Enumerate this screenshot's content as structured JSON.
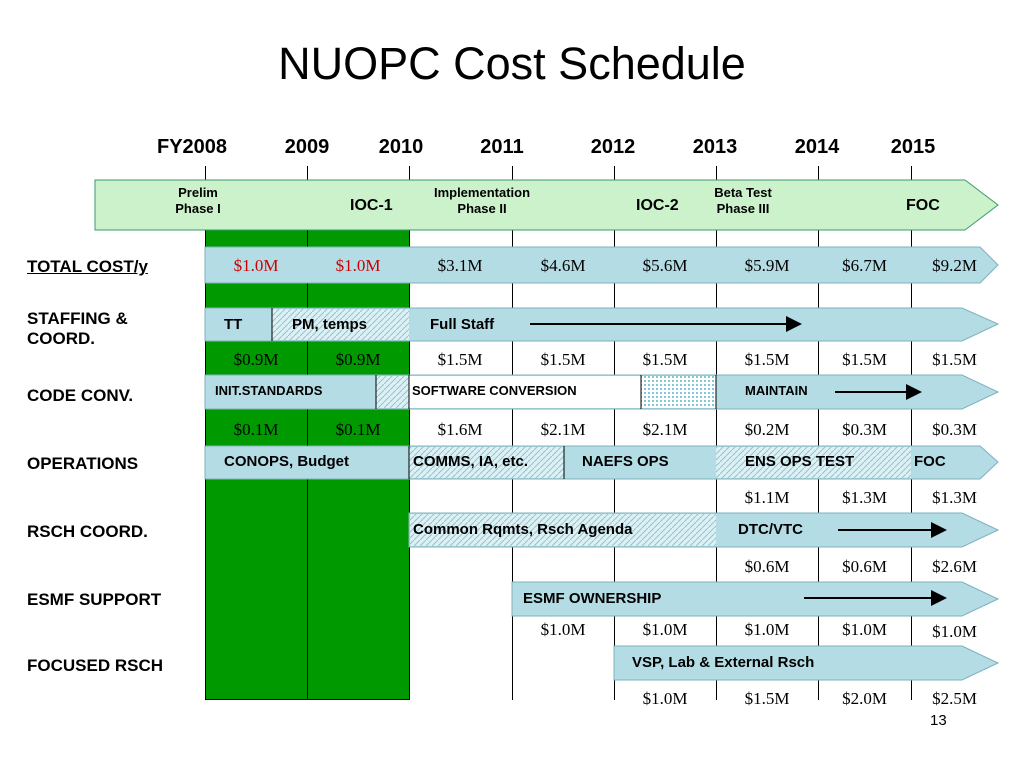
{
  "title": "NUOPC Cost Schedule",
  "years": [
    "FY2008",
    "2009",
    "2010",
    "2011",
    "2012",
    "2013",
    "2014",
    "2015"
  ],
  "phases": {
    "prelim": "Prelim\nPhase I",
    "ioc1": "IOC-1",
    "implementation": "Implementation\nPhase II",
    "ioc2": "IOC-2",
    "beta": "Beta Test\nPhase III",
    "foc": "FOC"
  },
  "rows": {
    "total": {
      "label": "TOTAL COST/y",
      "costs": [
        "$1.0M",
        "$1.0M",
        "$3.1M",
        "$4.6M",
        "$5.6M",
        "$5.9M",
        "$6.7M",
        "$9.2M"
      ]
    },
    "staffing": {
      "label": "STAFFING &\nCOORD.",
      "segments": [
        "TT",
        "PM, temps",
        "Full Staff"
      ],
      "costs": [
        "$0.9M",
        "$0.9M",
        "$1.5M",
        "$1.5M",
        "$1.5M",
        "$1.5M",
        "$1.5M",
        "$1.5M"
      ]
    },
    "code": {
      "label": "CODE CONV.",
      "segments": [
        "INIT.STANDARDS",
        "SOFTWARE CONVERSION",
        "MAINTAIN"
      ],
      "costs": [
        "$0.1M",
        "$0.1M",
        "$1.6M",
        "$2.1M",
        "$2.1M",
        "$0.2M",
        "$0.3M",
        "$0.3M"
      ]
    },
    "operations": {
      "label": "OPERATIONS",
      "segments": [
        "CONOPS, Budget",
        "COMMS, IA, etc.",
        "NAEFS OPS",
        "ENS OPS TEST",
        "FOC"
      ],
      "costs": [
        "$1.1M",
        "$1.3M",
        "$1.3M"
      ]
    },
    "rsch": {
      "label": "RSCH COORD.",
      "segments": [
        "Common Rqmts, Rsch Agenda",
        "DTC/VTC"
      ],
      "costs": [
        "$0.6M",
        "$0.6M",
        "$2.6M"
      ]
    },
    "esmf": {
      "label": "ESMF SUPPORT",
      "segments": [
        "ESMF OWNERSHIP"
      ],
      "costs": [
        "$1.0M",
        "$1.0M",
        "$1.0M",
        "$1.0M",
        "$1.0M"
      ]
    },
    "focused": {
      "label": "FOCUSED RSCH",
      "segments": [
        "VSP, Lab & External Rsch"
      ],
      "costs": [
        "$1.0M",
        "$1.5M",
        "$2.0M",
        "$2.5M"
      ]
    }
  },
  "page_number": "13",
  "colors": {
    "green": "#009a00",
    "phase_bar": "#ccf2cc",
    "task_bar": "#b4dce4",
    "red_cost": "#cc0000"
  }
}
